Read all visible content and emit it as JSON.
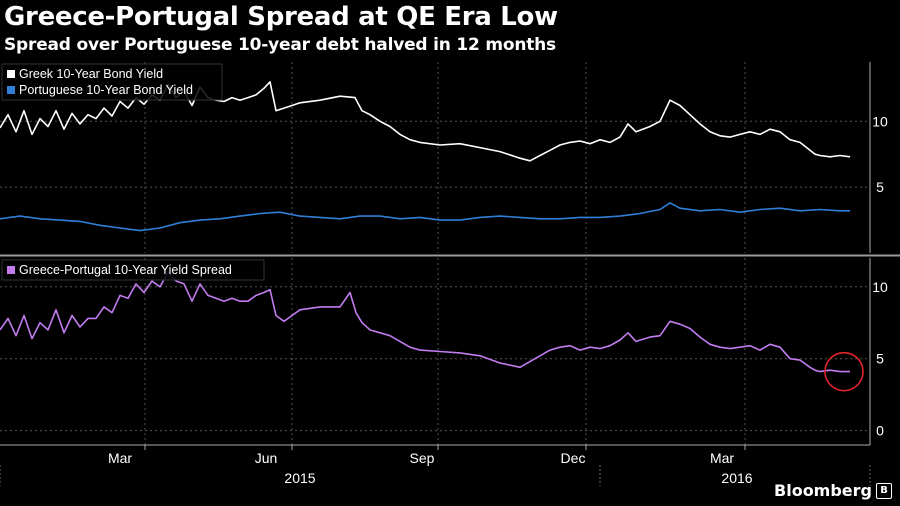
{
  "title": "Greece-Portugal Spread at QE Era Low",
  "subtitle": "Spread over Portuguese 10-year debt halved in 12 months",
  "brand": "Bloomberg",
  "colors": {
    "greek": "#ffffff",
    "portuguese": "#2f7fd8",
    "spread": "#c17cf0",
    "highlight": "#e0242b",
    "grid": "#555555"
  },
  "chart_data": [
    {
      "type": "line",
      "legend_position": "top-left",
      "grid": true,
      "x_ticks": [
        "Mar",
        "Jun",
        "Sep",
        "Dec",
        "Mar"
      ],
      "x_years": [
        "2015",
        "2016"
      ],
      "y_ticks": [
        5,
        10
      ],
      "ylim": [
        0,
        14.5
      ],
      "series": [
        {
          "name": "Greek 10-Year Bond Yield",
          "color_key": "greek",
          "x": [
            0,
            8,
            16,
            24,
            32,
            40,
            48,
            56,
            64,
            72,
            80,
            88,
            96,
            104,
            112,
            120,
            128,
            136,
            144,
            152,
            160,
            168,
            176,
            184,
            192,
            200,
            208,
            216,
            224,
            232,
            240,
            248,
            256,
            264,
            270,
            276,
            284,
            292,
            300,
            320,
            340,
            355,
            362,
            370,
            380,
            390,
            400,
            410,
            420,
            440,
            460,
            480,
            500,
            520,
            530,
            540,
            550,
            560,
            570,
            580,
            590,
            600,
            610,
            620,
            628,
            636,
            650,
            660,
            670,
            680,
            690,
            700,
            710,
            720,
            730,
            740,
            750,
            760,
            770,
            780,
            790,
            800,
            810,
            815,
            820,
            830,
            840,
            850
          ],
          "y": [
            9.5,
            10.5,
            9.2,
            10.8,
            9.0,
            10.2,
            9.6,
            10.8,
            9.4,
            10.6,
            9.8,
            10.5,
            10.2,
            11.0,
            10.4,
            11.5,
            11.0,
            11.8,
            11.3,
            12.0,
            11.6,
            12.8,
            11.8,
            12.3,
            11.2,
            12.6,
            11.8,
            11.6,
            11.5,
            11.8,
            11.6,
            11.8,
            12.0,
            12.5,
            13.0,
            10.8,
            11.0,
            11.2,
            11.4,
            11.6,
            11.9,
            11.8,
            10.8,
            10.5,
            10.0,
            9.6,
            9.0,
            8.6,
            8.4,
            8.2,
            8.3,
            8.0,
            7.7,
            7.2,
            7.0,
            7.4,
            7.8,
            8.2,
            8.4,
            8.5,
            8.3,
            8.6,
            8.4,
            8.8,
            9.8,
            9.2,
            9.6,
            10.0,
            11.6,
            11.2,
            10.5,
            9.8,
            9.2,
            8.9,
            8.8,
            9.0,
            9.2,
            9.0,
            9.4,
            9.2,
            8.6,
            8.4,
            7.8,
            7.5,
            7.4,
            7.3,
            7.4,
            7.3
          ]
        },
        {
          "name": "Portuguese 10-Year Bond Yield",
          "color_key": "portuguese",
          "x": [
            0,
            20,
            40,
            60,
            80,
            100,
            120,
            140,
            160,
            180,
            200,
            220,
            240,
            260,
            280,
            300,
            320,
            340,
            360,
            380,
            400,
            420,
            440,
            460,
            480,
            500,
            520,
            540,
            560,
            580,
            600,
            620,
            640,
            660,
            670,
            680,
            700,
            720,
            740,
            760,
            780,
            800,
            820,
            840,
            850
          ],
          "y": [
            2.6,
            2.8,
            2.6,
            2.5,
            2.4,
            2.1,
            1.9,
            1.7,
            1.9,
            2.3,
            2.5,
            2.6,
            2.8,
            3.0,
            3.1,
            2.8,
            2.7,
            2.6,
            2.8,
            2.8,
            2.6,
            2.7,
            2.5,
            2.5,
            2.7,
            2.8,
            2.7,
            2.6,
            2.6,
            2.7,
            2.7,
            2.8,
            3.0,
            3.3,
            3.8,
            3.4,
            3.2,
            3.3,
            3.1,
            3.3,
            3.4,
            3.2,
            3.3,
            3.2,
            3.2
          ]
        }
      ]
    },
    {
      "type": "line",
      "legend_position": "top-left",
      "grid": true,
      "x_ticks": [
        "Mar",
        "Jun",
        "Sep",
        "Dec",
        "Mar"
      ],
      "x_years": [
        "2015",
        "2016"
      ],
      "y_ticks": [
        0,
        5,
        10
      ],
      "ylim": [
        -1,
        12
      ],
      "annotations": [
        "circle around latest spread value"
      ],
      "series": [
        {
          "name": "Greece-Portugal 10-Year Yield Spread",
          "color_key": "spread",
          "x": [
            0,
            8,
            16,
            24,
            32,
            40,
            48,
            56,
            64,
            72,
            80,
            88,
            96,
            104,
            112,
            120,
            128,
            136,
            144,
            152,
            160,
            168,
            176,
            184,
            192,
            200,
            208,
            216,
            224,
            232,
            240,
            248,
            256,
            264,
            270,
            276,
            284,
            292,
            300,
            320,
            340,
            350,
            356,
            362,
            370,
            380,
            390,
            400,
            410,
            420,
            440,
            460,
            480,
            500,
            520,
            530,
            540,
            550,
            560,
            570,
            580,
            590,
            600,
            610,
            620,
            628,
            636,
            650,
            660,
            670,
            680,
            690,
            700,
            710,
            720,
            730,
            740,
            750,
            760,
            770,
            780,
            790,
            800,
            810,
            815,
            820,
            830,
            840,
            850
          ],
          "y": [
            7.0,
            7.8,
            6.6,
            8.0,
            6.4,
            7.5,
            7.0,
            8.4,
            6.8,
            8.0,
            7.2,
            7.8,
            7.8,
            8.6,
            8.2,
            9.4,
            9.2,
            10.2,
            9.6,
            10.4,
            10.0,
            11.0,
            10.4,
            10.2,
            9.0,
            10.2,
            9.4,
            9.2,
            9.0,
            9.2,
            9.0,
            9.0,
            9.4,
            9.6,
            9.8,
            8.0,
            7.6,
            8.0,
            8.4,
            8.6,
            8.6,
            9.6,
            8.2,
            7.5,
            7.0,
            6.8,
            6.6,
            6.2,
            5.8,
            5.6,
            5.5,
            5.4,
            5.2,
            4.7,
            4.4,
            4.8,
            5.2,
            5.6,
            5.8,
            5.9,
            5.6,
            5.8,
            5.7,
            5.9,
            6.3,
            6.8,
            6.2,
            6.5,
            6.6,
            7.6,
            7.4,
            7.1,
            6.5,
            6.0,
            5.8,
            5.7,
            5.8,
            5.9,
            5.6,
            6.0,
            5.8,
            5.0,
            4.9,
            4.4,
            4.2,
            4.1,
            4.2,
            4.1,
            4.1
          ]
        }
      ]
    }
  ]
}
